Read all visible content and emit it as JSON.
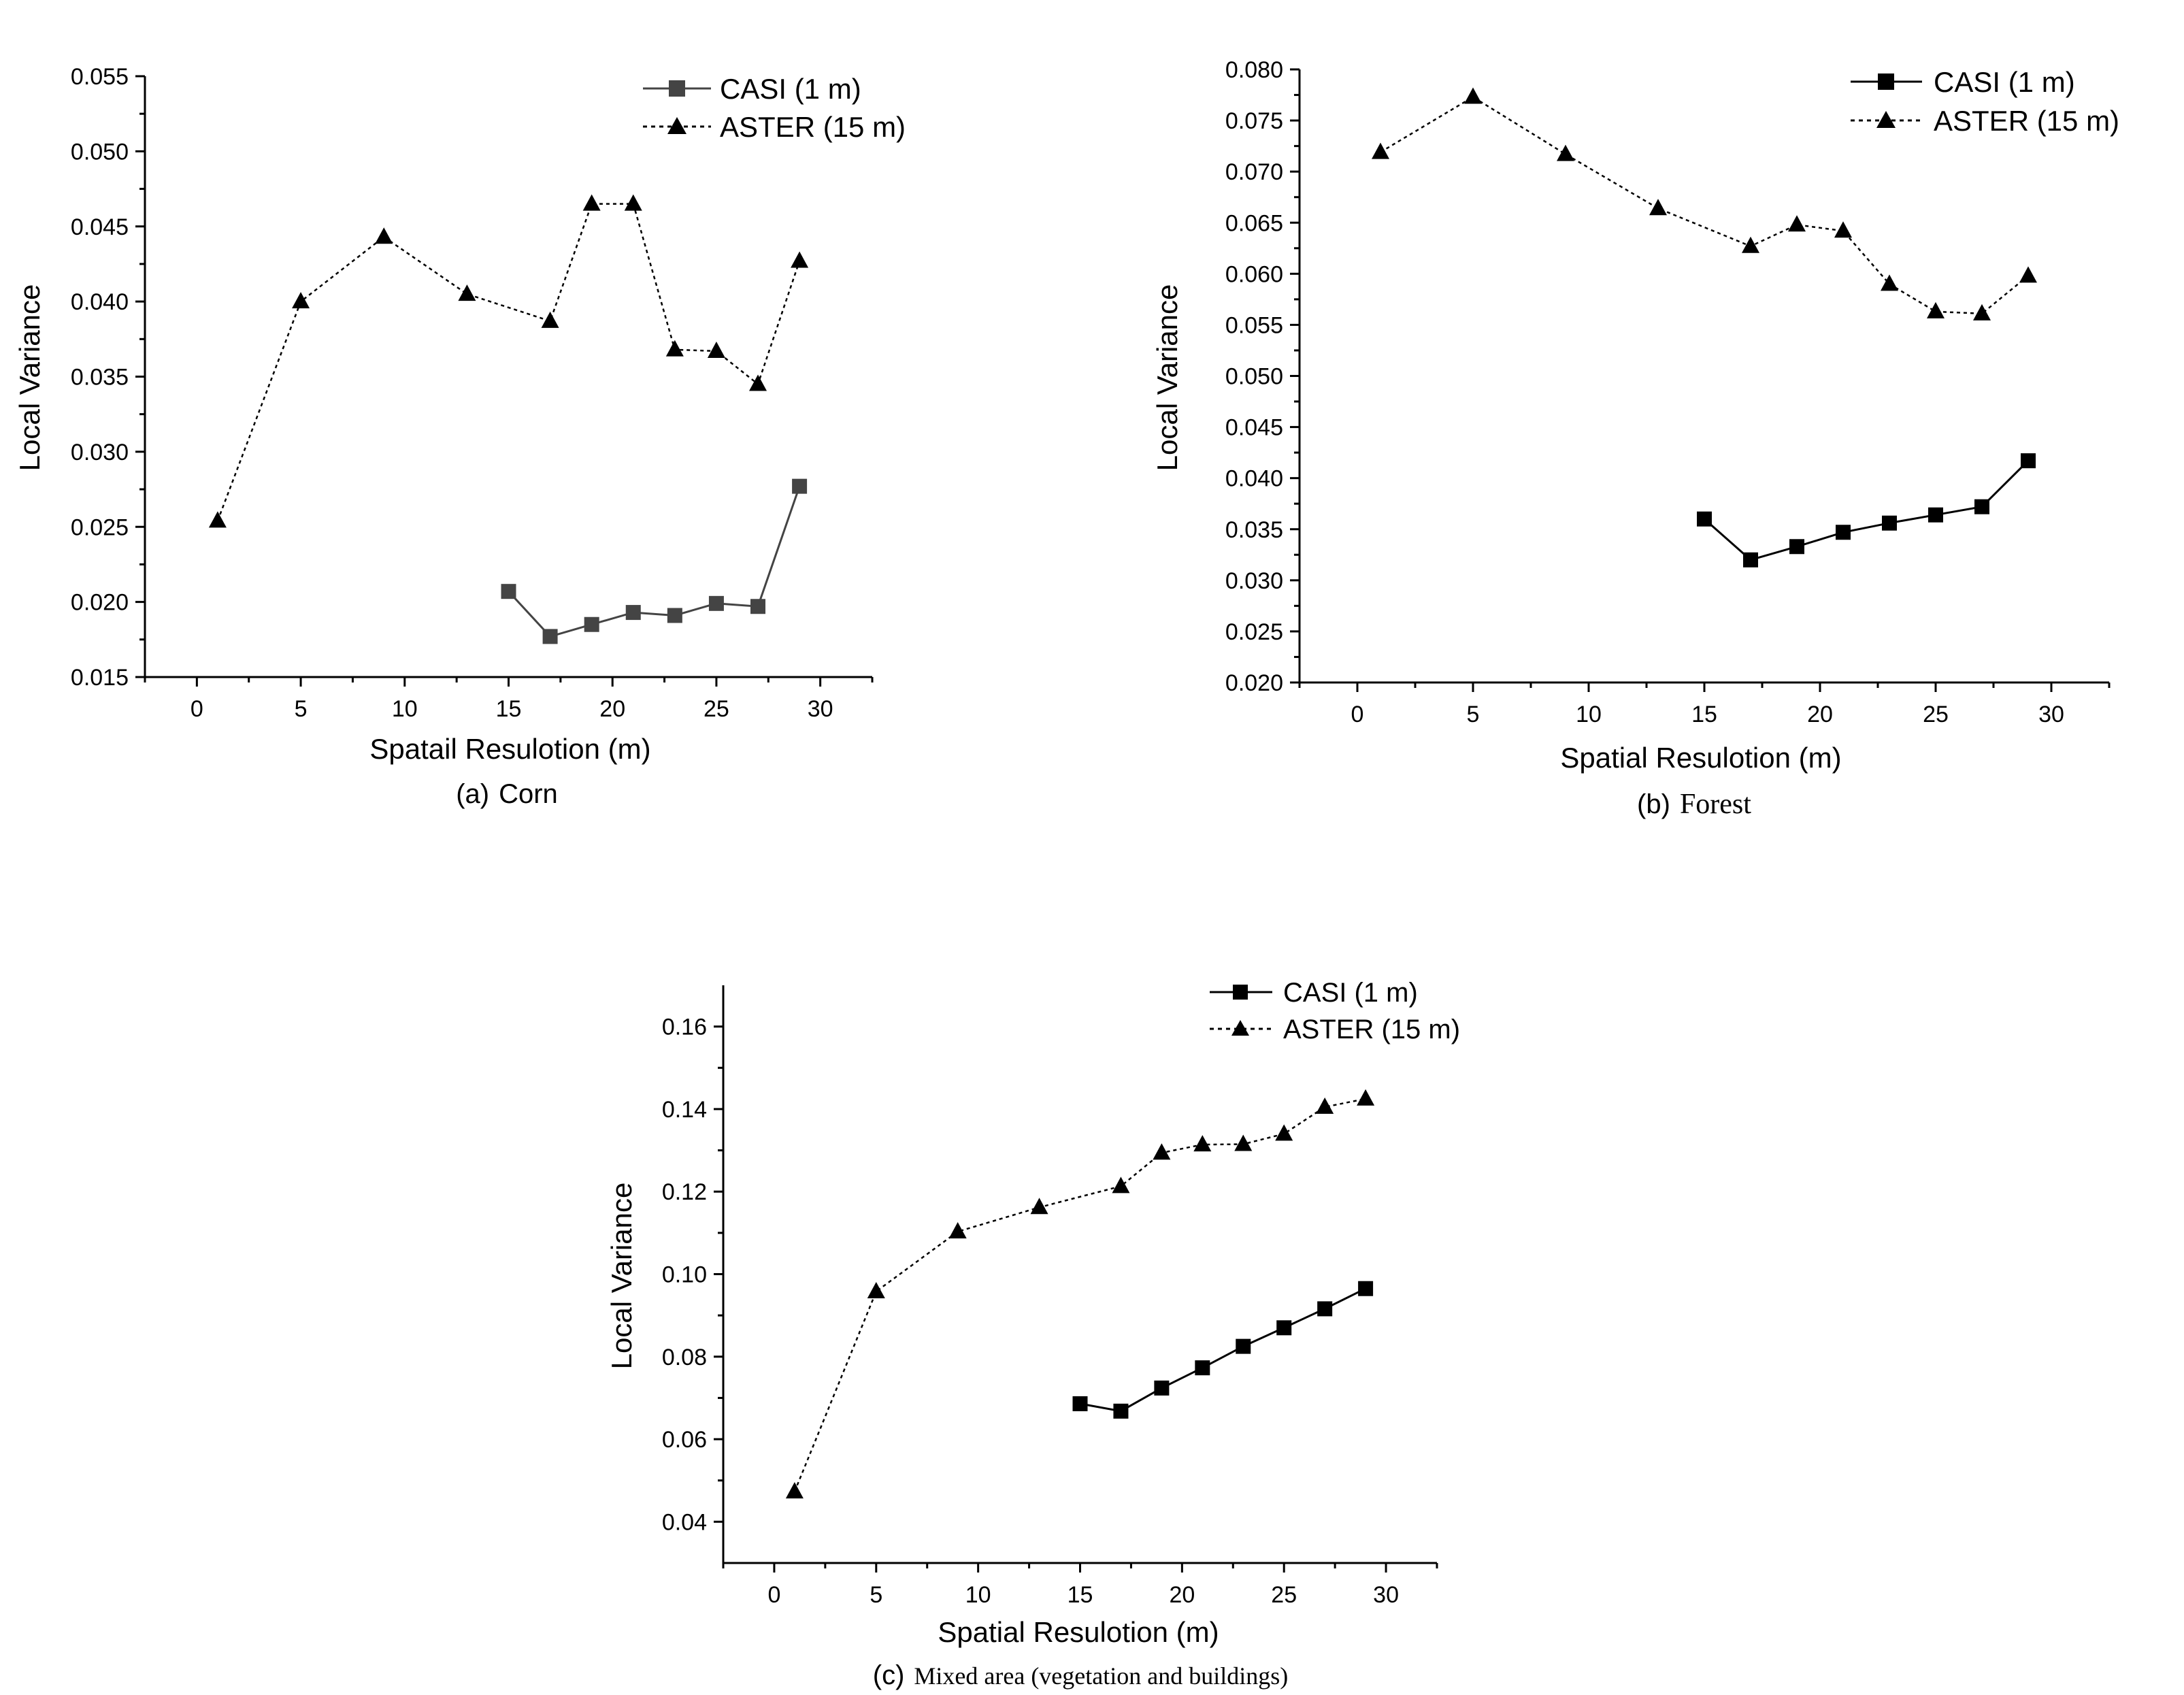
{
  "chart_data": [
    {
      "id": "a",
      "type": "line",
      "caption_prefix": "(a)",
      "caption_text": "Corn",
      "xlabel": "Spatail Resulotion (m)",
      "ylabel": "Local Variance",
      "xlim": [
        -2.5,
        32.5
      ],
      "ylim": [
        0.015,
        0.055
      ],
      "x_ticks": [
        0,
        5,
        10,
        15,
        20,
        25,
        30
      ],
      "x_tick_labels": [
        "0",
        "5",
        "10",
        "15",
        "20",
        "25",
        "30"
      ],
      "y_ticks": [
        0.015,
        0.02,
        0.025,
        0.03,
        0.035,
        0.04,
        0.045,
        0.05,
        0.055
      ],
      "y_tick_labels": [
        "0.015",
        "0.020",
        "0.025",
        "0.030",
        "0.035",
        "0.040",
        "0.045",
        "0.050",
        "0.055"
      ],
      "legend_position": "top-right",
      "series": [
        {
          "name": "CASI (1 m)",
          "marker": "square",
          "line_style": "solid",
          "color": "#444444",
          "x": [
            15,
            17,
            19,
            21,
            23,
            25,
            27,
            29
          ],
          "y": [
            0.0207,
            0.0177,
            0.0185,
            0.0193,
            0.0191,
            0.0199,
            0.0197,
            0.0277
          ]
        },
        {
          "name": "ASTER (15 m)",
          "marker": "triangle",
          "line_style": "dotted",
          "color": "#000000",
          "x": [
            1,
            5,
            9,
            13,
            17,
            19,
            21,
            23,
            25,
            27,
            29
          ],
          "y": [
            0.0254,
            0.04,
            0.0443,
            0.0405,
            0.0387,
            0.0465,
            0.0465,
            0.0368,
            0.0367,
            0.0345,
            0.0427
          ]
        }
      ]
    },
    {
      "id": "b",
      "type": "line",
      "caption_prefix": "(b)",
      "caption_text": "Forest",
      "xlabel": "Spatial Resulotion (m)",
      "ylabel": "Local Variance",
      "xlim": [
        -2.5,
        32.5
      ],
      "ylim": [
        0.02,
        0.08
      ],
      "x_ticks": [
        0,
        5,
        10,
        15,
        20,
        25,
        30
      ],
      "x_tick_labels": [
        "0",
        "5",
        "10",
        "15",
        "20",
        "25",
        "30"
      ],
      "y_ticks": [
        0.02,
        0.025,
        0.03,
        0.035,
        0.04,
        0.045,
        0.05,
        0.055,
        0.06,
        0.065,
        0.07,
        0.075,
        0.08
      ],
      "y_tick_labels": [
        "0.020",
        "0.025",
        "0.030",
        "0.035",
        "0.040",
        "0.045",
        "0.050",
        "0.055",
        "0.060",
        "0.065",
        "0.070",
        "0.075",
        "0.080"
      ],
      "legend_position": "top-right",
      "series": [
        {
          "name": "CASI (1 m)",
          "marker": "square",
          "line_style": "solid",
          "color": "#000000",
          "x": [
            15,
            17,
            19,
            21,
            23,
            25,
            27,
            29
          ],
          "y": [
            0.036,
            0.032,
            0.0333,
            0.0347,
            0.0356,
            0.0364,
            0.0372,
            0.0417
          ]
        },
        {
          "name": "ASTER (15 m)",
          "marker": "triangle",
          "line_style": "dotted",
          "color": "#000000",
          "x": [
            1,
            5,
            9,
            13,
            17,
            19,
            21,
            23,
            25,
            27,
            29
          ],
          "y": [
            0.0719,
            0.0773,
            0.0717,
            0.0664,
            0.0627,
            0.0648,
            0.0642,
            0.059,
            0.0563,
            0.0561,
            0.0598
          ]
        }
      ]
    },
    {
      "id": "c",
      "type": "line",
      "caption_prefix": "(c)",
      "caption_text": "Mixed area (vegetation and buildings)",
      "xlabel": "Spatial Resulotion (m)",
      "ylabel": "Local Variance",
      "xlim": [
        -2.5,
        32.5
      ],
      "ylim": [
        0.03,
        0.17
      ],
      "x_ticks": [
        0,
        5,
        10,
        15,
        20,
        25,
        30
      ],
      "x_tick_labels": [
        "0",
        "5",
        "10",
        "15",
        "20",
        "25",
        "30"
      ],
      "y_ticks": [
        0.04,
        0.06,
        0.08,
        0.1,
        0.12,
        0.14,
        0.16
      ],
      "y_tick_labels": [
        "0.04",
        "0.06",
        "0.08",
        "0.10",
        "0.12",
        "0.14",
        "0.16"
      ],
      "legend_position": "top-right",
      "series": [
        {
          "name": "CASI (1 m)",
          "marker": "square",
          "line_style": "solid",
          "color": "#000000",
          "x": [
            15,
            17,
            19,
            21,
            23,
            25,
            27,
            29
          ],
          "y": [
            0.0686,
            0.0668,
            0.0724,
            0.0773,
            0.0825,
            0.087,
            0.0916,
            0.0965
          ]
        },
        {
          "name": "ASTER (15 m)",
          "marker": "triangle",
          "line_style": "dotted",
          "color": "#000000",
          "x": [
            1,
            5,
            9,
            13,
            17,
            19,
            21,
            23,
            25,
            27,
            29
          ],
          "y": [
            0.0473,
            0.0958,
            0.1103,
            0.1162,
            0.1213,
            0.1294,
            0.1314,
            0.1315,
            0.134,
            0.1405,
            0.1425
          ]
        }
      ]
    }
  ]
}
